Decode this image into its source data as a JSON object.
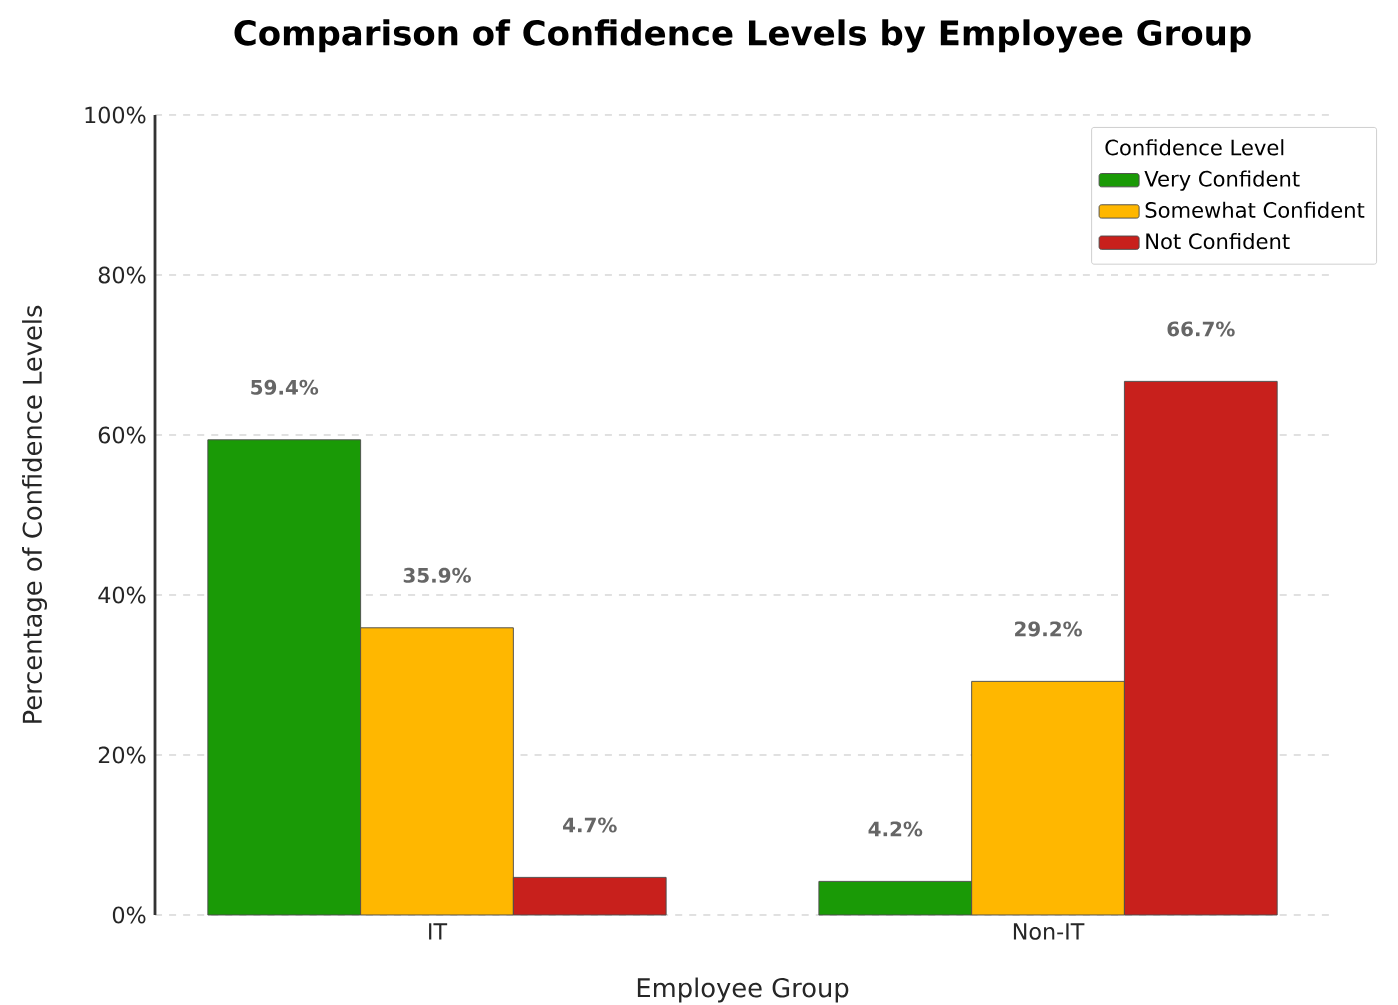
{
  "chart_data": {
    "type": "bar",
    "title": "Comparison of Confidence Levels by Employee Group",
    "xlabel": "Employee Group",
    "ylabel": "Percentage of Confidence Levels",
    "legend_title": "Confidence Level",
    "categories": [
      "IT",
      "Non-IT"
    ],
    "series": [
      {
        "name": "Very Confident",
        "color": "#1a9a06",
        "values": [
          59.4,
          4.2
        ],
        "value_labels": [
          "59.4%",
          "4.2%"
        ]
      },
      {
        "name": "Somewhat Confident",
        "color": "#ffb700",
        "values": [
          35.9,
          29.2
        ],
        "value_labels": [
          "35.9%",
          "29.2%"
        ]
      },
      {
        "name": "Not Confident",
        "color": "#c8201c",
        "values": [
          4.7,
          66.7
        ],
        "value_labels": [
          "4.7%",
          "66.7%"
        ]
      }
    ],
    "ylim": [
      0,
      100
    ],
    "yticks": [
      {
        "value": 0,
        "label": "0%"
      },
      {
        "value": 20,
        "label": "20%"
      },
      {
        "value": 40,
        "label": "40%"
      },
      {
        "value": 60,
        "label": "60%"
      },
      {
        "value": 80,
        "label": "80%"
      },
      {
        "value": 100,
        "label": "100%"
      }
    ],
    "grid": "y",
    "legend": "top right"
  }
}
